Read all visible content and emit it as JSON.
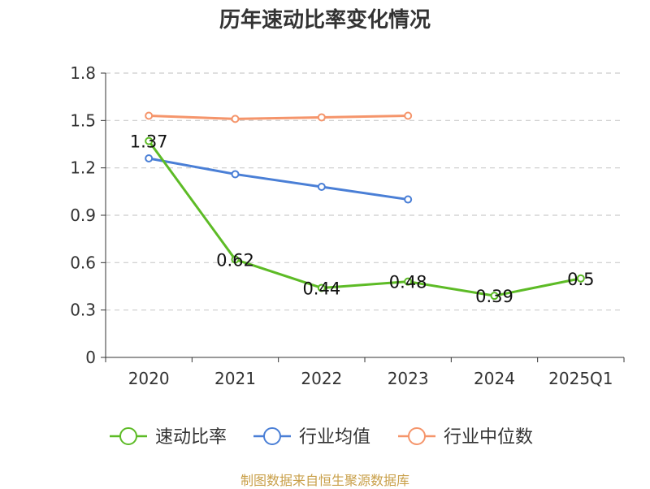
{
  "chart_data": {
    "type": "line",
    "title": "历年速动比率变化情况",
    "categories": [
      "2020",
      "2021",
      "2022",
      "2023",
      "2024",
      "2025Q1"
    ],
    "ylim": [
      0,
      1.8
    ],
    "yticks": [
      "0",
      "0.3",
      "0.6",
      "0.9",
      "1.2",
      "1.5",
      "1.8"
    ],
    "grid": true,
    "legend_position": "bottom",
    "series": [
      {
        "name": "速动比率",
        "color": "#5dbb26",
        "values": [
          1.37,
          0.62,
          0.44,
          0.48,
          0.39,
          0.5
        ],
        "labels": [
          "1.37",
          "0.62",
          "0.44",
          "0.48",
          "0.39",
          "0.5"
        ]
      },
      {
        "name": "行业均值",
        "color": "#4a7fd6",
        "values": [
          1.26,
          1.16,
          1.08,
          1.0,
          null,
          null
        ]
      },
      {
        "name": "行业中位数",
        "color": "#f5956b",
        "values": [
          1.53,
          1.51,
          1.52,
          1.53,
          null,
          null
        ]
      }
    ]
  },
  "source": "制图数据来自恒生聚源数据库"
}
